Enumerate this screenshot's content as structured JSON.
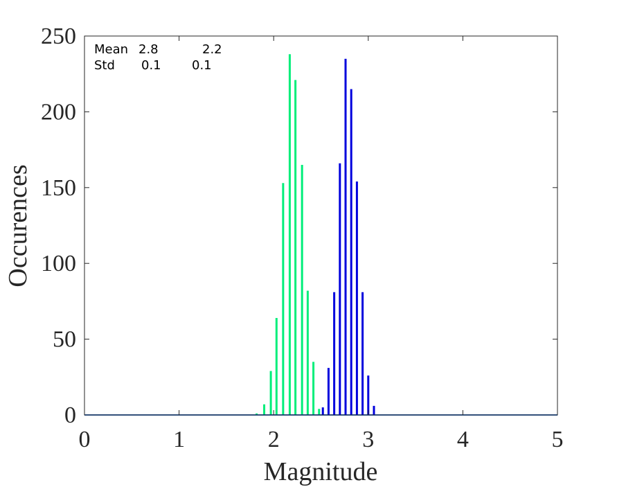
{
  "chart_data": {
    "type": "bar",
    "xlabel": "Magnitude",
    "ylabel": "Occurences",
    "xlim": [
      0,
      5
    ],
    "ylim": [
      0,
      250
    ],
    "xticks": [
      "0",
      "1",
      "2",
      "3",
      "4",
      "5"
    ],
    "yticks": [
      "0",
      "50",
      "100",
      "150",
      "200",
      "250"
    ],
    "grid": false,
    "series": [
      {
        "color": "#00ee7a",
        "x": [
          1.82,
          1.9,
          1.97,
          2.03,
          2.1,
          2.17,
          2.23,
          2.3,
          2.36,
          2.42,
          2.48
        ],
        "values": [
          1,
          7,
          29,
          64,
          153,
          238,
          221,
          165,
          82,
          35,
          4
        ]
      },
      {
        "color": "#0000dd",
        "x": [
          2.52,
          2.58,
          2.64,
          2.7,
          2.76,
          2.82,
          2.88,
          2.94,
          3.0,
          3.06
        ],
        "values": [
          5,
          31,
          81,
          166,
          235,
          215,
          154,
          81,
          26,
          6
        ]
      }
    ],
    "annotations": {
      "row1": {
        "label": "Mean",
        "value1": "2.8",
        "value2": "2.2"
      },
      "row2": {
        "label": "Std",
        "value1": "0.1",
        "value2": "0.1"
      }
    }
  }
}
